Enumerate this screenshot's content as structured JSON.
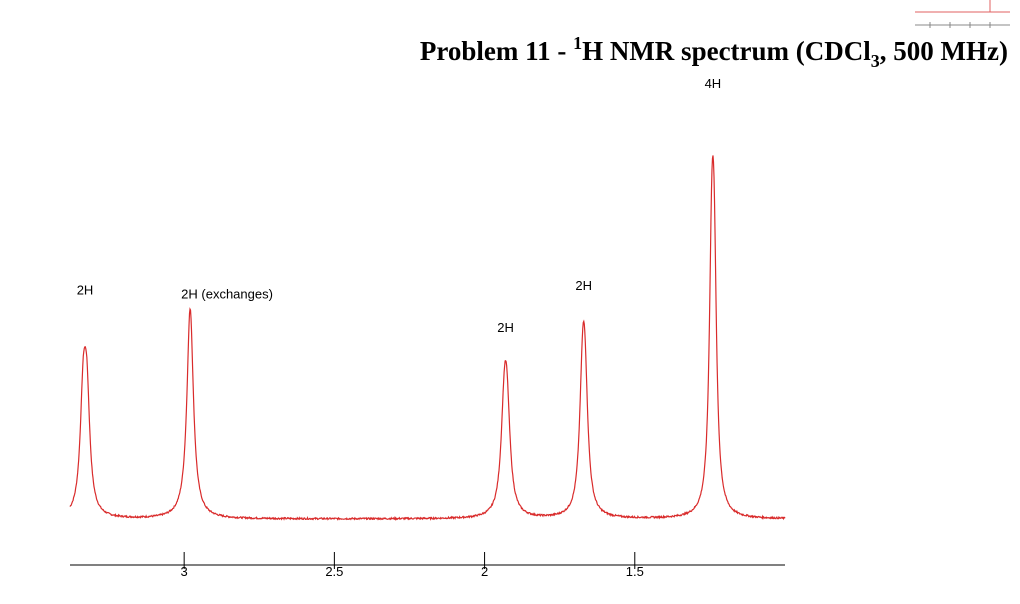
{
  "title": {
    "prefix": "Problem 11 - ",
    "superscript": "1",
    "nucleus": "H NMR spectrum (CDCl",
    "subscript": "3",
    "suffix": ", 500 MHz)"
  },
  "colors": {
    "spectrum": "#d92b2b",
    "axis": "#000000",
    "thumbnail": "#e06060"
  },
  "chart_data": {
    "type": "line",
    "title": "Problem 11 - 1H NMR spectrum (CDCl3, 500 MHz)",
    "xlabel": "",
    "ylabel": "",
    "x_axis_reversed": true,
    "xlim": [
      3.38,
      1.0
    ],
    "ylim": [
      0,
      1.0
    ],
    "grid": false,
    "x_ticks": [
      {
        "value": 3,
        "label": "3"
      },
      {
        "value": 2.5,
        "label": "2.5"
      },
      {
        "value": 2,
        "label": "2"
      },
      {
        "value": 1.5,
        "label": "1.5"
      }
    ],
    "series": [
      {
        "peaks": [
          {
            "shift": 3.33,
            "height": 0.51,
            "width": 0.012,
            "shape": "doublet",
            "split": 0.012
          },
          {
            "shift": 2.98,
            "height": 0.5,
            "width": 0.013,
            "shape": "singlet",
            "split": 0
          },
          {
            "shift": 1.93,
            "height": 0.42,
            "width": 0.013,
            "shape": "doublet",
            "split": 0.009
          },
          {
            "shift": 1.67,
            "height": 0.52,
            "width": 0.012,
            "shape": "doublet",
            "split": 0.008
          },
          {
            "shift": 1.24,
            "height": 1.0,
            "width": 0.01,
            "shape": "doublet",
            "split": 0.008
          }
        ]
      }
    ],
    "annotations": [
      {
        "text": "2H",
        "shift": 3.33,
        "height": 0.51
      },
      {
        "text": "2H (exchanges)",
        "shift": 2.98,
        "height": 0.5
      },
      {
        "text": "2H",
        "shift": 1.93,
        "height": 0.42
      },
      {
        "text": "2H",
        "shift": 1.67,
        "height": 0.52
      },
      {
        "text": "4H",
        "shift": 1.24,
        "height": 1.0
      }
    ]
  }
}
